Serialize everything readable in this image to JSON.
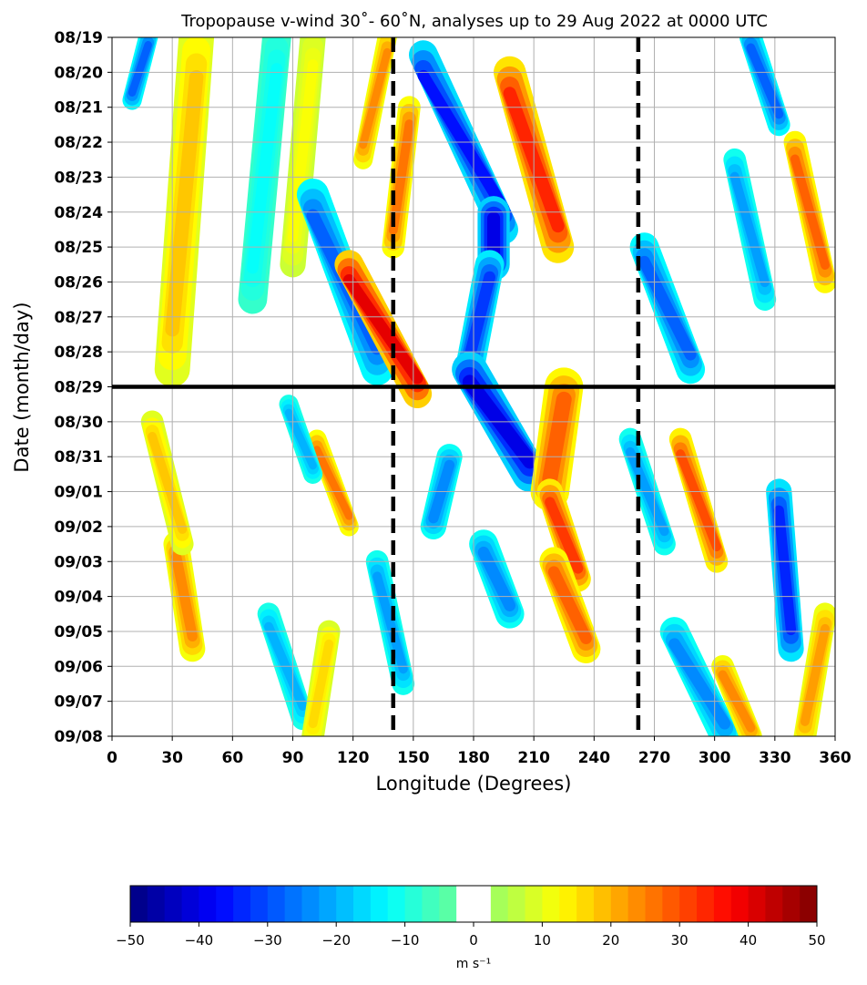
{
  "chart_data": {
    "type": "heatmap",
    "title": "Tropopause v-wind 30˚- 60˚N, analyses up to 29 Aug 2022 at 0000 UTC",
    "xlabel": "Longitude (Degrees)",
    "ylabel": "Date (month/day)",
    "x_ticks": [
      0,
      30,
      60,
      90,
      120,
      150,
      180,
      210,
      240,
      270,
      300,
      330,
      360
    ],
    "x_tick_labels": [
      "0",
      "30",
      "60",
      "90",
      "120",
      "150",
      "180",
      "210",
      "240",
      "270",
      "300",
      "330",
      "360"
    ],
    "xlim": [
      0,
      360
    ],
    "y_tick_labels": [
      "08/19",
      "08/20",
      "08/21",
      "08/22",
      "08/23",
      "08/24",
      "08/25",
      "08/26",
      "08/27",
      "08/28",
      "08/29",
      "08/30",
      "08/31",
      "09/01",
      "09/02",
      "09/03",
      "09/04",
      "09/05",
      "09/06",
      "09/07",
      "09/08"
    ],
    "ylim": [
      "08/19",
      "09/08"
    ],
    "grid": true,
    "analysis_date_line": "08/29",
    "reference_longitudes": [
      140,
      262
    ],
    "colorbar": {
      "label": "m s⁻¹",
      "min": -50,
      "max": 50,
      "ticks": [
        -50,
        -40,
        -30,
        -20,
        -10,
        0,
        10,
        20,
        30,
        40,
        50
      ],
      "tick_labels": [
        "−50",
        "−40",
        "−30",
        "−20",
        "−10",
        "0",
        "10",
        "20",
        "30",
        "40",
        "50"
      ],
      "white_band": [
        -2.5,
        2.5
      ]
    },
    "streaks": [
      {
        "v": -28,
        "d0": 0.0,
        "d1": 1.8,
        "lon0": 18,
        "lon1": 10,
        "w": 6
      },
      {
        "v": 18,
        "d0": 0.0,
        "d1": 9.5,
        "lon0": 42,
        "lon1": 30,
        "w": 11
      },
      {
        "v": -12,
        "d0": 0.0,
        "d1": 7.5,
        "lon0": 82,
        "lon1": 70,
        "w": 9
      },
      {
        "v": 12,
        "d0": 0.0,
        "d1": 6.5,
        "lon0": 100,
        "lon1": 90,
        "w": 8
      },
      {
        "v": 26,
        "d0": 2.0,
        "d1": 6.0,
        "lon0": 148,
        "lon1": 140,
        "w": 7
      },
      {
        "v": 24,
        "d0": 0.0,
        "d1": 3.5,
        "lon0": 137,
        "lon1": 125,
        "w": 6
      },
      {
        "v": -28,
        "d0": 4.5,
        "d1": 9.5,
        "lon0": 100,
        "lon1": 132,
        "w": 10
      },
      {
        "v": 40,
        "d0": 6.5,
        "d1": 10.2,
        "lon0": 118,
        "lon1": 152,
        "w": 9
      },
      {
        "v": -36,
        "d0": 0.5,
        "d1": 5.5,
        "lon0": 155,
        "lon1": 195,
        "w": 9
      },
      {
        "v": -40,
        "d0": 5.0,
        "d1": 6.5,
        "lon0": 190,
        "lon1": 190,
        "w": 10
      },
      {
        "v": -32,
        "d0": 6.5,
        "d1": 9.5,
        "lon0": 188,
        "lon1": 178,
        "w": 9
      },
      {
        "v": -40,
        "d0": 9.5,
        "d1": 12.5,
        "lon0": 178,
        "lon1": 208,
        "w": 11
      },
      {
        "v": 34,
        "d0": 1.0,
        "d1": 6.0,
        "lon0": 198,
        "lon1": 222,
        "w": 10
      },
      {
        "v": 28,
        "d0": 10.0,
        "d1": 13.0,
        "lon0": 225,
        "lon1": 218,
        "w": 12
      },
      {
        "v": 32,
        "d0": 13.0,
        "d1": 15.5,
        "lon0": 218,
        "lon1": 232,
        "w": 8
      },
      {
        "v": 28,
        "d0": 15.0,
        "d1": 17.5,
        "lon0": 220,
        "lon1": 236,
        "w": 9
      },
      {
        "v": -24,
        "d0": 12.0,
        "d1": 14.0,
        "lon0": 168,
        "lon1": 160,
        "w": 8
      },
      {
        "v": -24,
        "d0": 14.5,
        "d1": 16.5,
        "lon0": 185,
        "lon1": 198,
        "w": 9
      },
      {
        "v": -28,
        "d0": 6.0,
        "d1": 9.5,
        "lon0": 265,
        "lon1": 288,
        "w": 9
      },
      {
        "v": 30,
        "d0": 11.5,
        "d1": 15.0,
        "lon0": 283,
        "lon1": 301,
        "w": 7
      },
      {
        "v": -22,
        "d0": 11.5,
        "d1": 14.5,
        "lon0": 258,
        "lon1": 275,
        "w": 7
      },
      {
        "v": -34,
        "d0": 13.0,
        "d1": 17.5,
        "lon0": 332,
        "lon1": 338,
        "w": 8
      },
      {
        "v": -24,
        "d0": 17.0,
        "d1": 20.0,
        "lon0": 280,
        "lon1": 305,
        "w": 9
      },
      {
        "v": 24,
        "d0": 18.0,
        "d1": 20.0,
        "lon0": 304,
        "lon1": 318,
        "w": 7
      },
      {
        "v": 28,
        "d0": 3.0,
        "d1": 7.0,
        "lon0": 340,
        "lon1": 355,
        "w": 7
      },
      {
        "v": -28,
        "d0": 0.0,
        "d1": 2.5,
        "lon0": 318,
        "lon1": 332,
        "w": 7
      },
      {
        "v": -22,
        "d0": 3.5,
        "d1": 7.5,
        "lon0": 310,
        "lon1": 325,
        "w": 7
      },
      {
        "v": 22,
        "d0": 16.5,
        "d1": 20.0,
        "lon0": 355,
        "lon1": 345,
        "w": 7
      },
      {
        "v": -22,
        "d0": 15.0,
        "d1": 18.5,
        "lon0": 132,
        "lon1": 145,
        "w": 7
      },
      {
        "v": 26,
        "d0": 11.5,
        "d1": 14.0,
        "lon0": 102,
        "lon1": 118,
        "w": 6
      },
      {
        "v": -20,
        "d0": 10.5,
        "d1": 12.5,
        "lon0": 88,
        "lon1": 100,
        "w": 6
      },
      {
        "v": 24,
        "d0": 14.5,
        "d1": 17.5,
        "lon0": 32,
        "lon1": 40,
        "w": 8
      },
      {
        "v": 18,
        "d0": 11.0,
        "d1": 14.5,
        "lon0": 20,
        "lon1": 35,
        "w": 7
      },
      {
        "v": -20,
        "d0": 16.5,
        "d1": 19.5,
        "lon0": 78,
        "lon1": 95,
        "w": 7
      },
      {
        "v": 16,
        "d0": 17.0,
        "d1": 20.0,
        "lon0": 108,
        "lon1": 100,
        "w": 7
      }
    ]
  }
}
